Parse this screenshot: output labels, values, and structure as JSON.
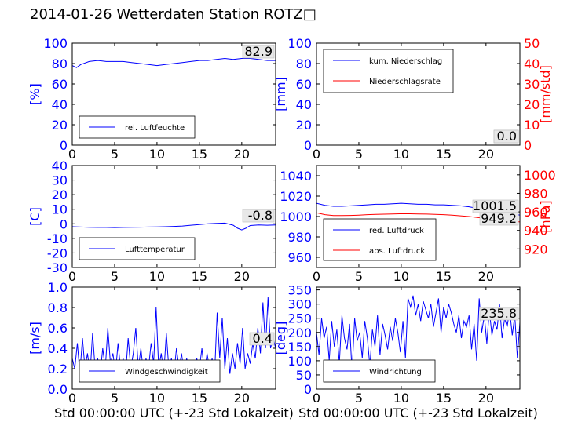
{
  "title": "2014-01-26 Wetterdaten Station ROTZ□",
  "colors": {
    "left_axis": "#0000ff",
    "right_axis": "#ff0000",
    "series_blue": "#0000ff",
    "series_red": "#ff0000"
  },
  "chart_data": [
    {
      "id": "humidity",
      "type": "line",
      "ylabel": "[%]",
      "xlim": [
        0,
        24
      ],
      "ylim": [
        0,
        100
      ],
      "xticks": [
        0,
        5,
        10,
        15,
        20
      ],
      "yticks": [
        0,
        20,
        40,
        60,
        80,
        100
      ],
      "legend_position": "lower-left",
      "value_box": "82.9",
      "series": [
        {
          "name": "rel. Luftfeuchte",
          "color": "#0000ff",
          "x": [
            0,
            0.5,
            1,
            2,
            3,
            4,
            5,
            6,
            7,
            8,
            9,
            10,
            11,
            12,
            13,
            14,
            15,
            16,
            17,
            18,
            19,
            20,
            21,
            22,
            23,
            24
          ],
          "y": [
            78,
            76,
            79,
            82,
            83,
            82,
            82,
            82,
            81,
            80,
            79,
            78,
            79,
            80,
            81,
            82,
            83,
            83,
            84,
            85,
            84,
            85,
            85,
            84,
            83,
            83
          ]
        }
      ]
    },
    {
      "id": "precipitation",
      "type": "line",
      "ylabel": "[mm]",
      "y2label": "[mm/std]",
      "xlim": [
        0,
        24
      ],
      "ylim": [
        0,
        100
      ],
      "y2lim": [
        0,
        50
      ],
      "xticks": [
        0,
        5,
        10,
        15,
        20
      ],
      "yticks": [
        0,
        20,
        40,
        60,
        80,
        100
      ],
      "y2ticks": [
        0,
        10,
        20,
        30,
        40,
        50
      ],
      "legend_position": "upper-left",
      "value_box": "0.0",
      "value_box2": "0.0",
      "series": [
        {
          "name": "kum. Niederschlag",
          "color": "#0000ff",
          "axis": "left",
          "x": [
            0,
            24
          ],
          "y": [
            0,
            0
          ]
        },
        {
          "name": "Niederschlagsrate",
          "color": "#ff0000",
          "axis": "right",
          "x": [
            0,
            24
          ],
          "y": [
            0,
            0
          ]
        }
      ]
    },
    {
      "id": "temperature",
      "type": "line",
      "ylabel": "[C]",
      "xlim": [
        0,
        24
      ],
      "ylim": [
        -30,
        40
      ],
      "xticks": [
        0,
        5,
        10,
        15,
        20
      ],
      "yticks": [
        -30,
        -20,
        -10,
        0,
        10,
        20,
        30,
        40
      ],
      "legend_position": "lower-left",
      "value_box": "-0.8",
      "series": [
        {
          "name": "Lufttemperatur",
          "color": "#0000ff",
          "x": [
            0,
            1,
            2,
            3,
            4,
            5,
            6,
            7,
            8,
            9,
            10,
            11,
            12,
            13,
            14,
            15,
            16,
            17,
            18,
            19,
            19.5,
            20,
            20.5,
            21,
            22,
            23,
            24
          ],
          "y": [
            -2,
            -2.2,
            -2.4,
            -2.5,
            -2.5,
            -2.6,
            -2.5,
            -2.4,
            -2.3,
            -2.2,
            -2.1,
            -2,
            -1.8,
            -1.5,
            -1,
            -0.5,
            0,
            0.3,
            0.5,
            -1,
            -3,
            -4.2,
            -3,
            -1.2,
            -0.8,
            -1,
            -0.8
          ]
        }
      ]
    },
    {
      "id": "pressure",
      "type": "line",
      "ylabel": "",
      "y2label": "[hPa]",
      "xlim": [
        0,
        24
      ],
      "ylim": [
        950,
        1050
      ],
      "y2lim": [
        900,
        1010
      ],
      "xticks": [
        0,
        5,
        10,
        15,
        20
      ],
      "yticks": [
        960,
        980,
        1000,
        1020,
        1040
      ],
      "y2ticks": [
        920,
        940,
        960,
        980,
        1000
      ],
      "legend_position": "lower-left",
      "value_box": "1001.5",
      "value_box2": "949.2",
      "series": [
        {
          "name": "red. Luftdruck",
          "color": "#0000ff",
          "axis": "left",
          "x": [
            0,
            1,
            2,
            3,
            4,
            5,
            6,
            7,
            8,
            9,
            10,
            11,
            12,
            13,
            14,
            15,
            16,
            17,
            18,
            19,
            20,
            21,
            22,
            23,
            24
          ],
          "y": [
            1013,
            1011,
            1010,
            1010,
            1010.5,
            1011,
            1011.5,
            1012,
            1012,
            1012.5,
            1013,
            1012.5,
            1012,
            1012,
            1011.5,
            1011.5,
            1011,
            1010.5,
            1009.5,
            1008,
            1007,
            1005.5,
            1004,
            1002.5,
            1001.5
          ]
        },
        {
          "name": "abs. Luftdruck",
          "color": "#ff0000",
          "axis": "right",
          "x": [
            0,
            1,
            2,
            3,
            4,
            5,
            6,
            7,
            8,
            9,
            10,
            11,
            12,
            13,
            14,
            15,
            16,
            17,
            18,
            19,
            20,
            21,
            22,
            23,
            24
          ],
          "y": [
            959,
            957,
            956,
            956,
            956.2,
            956.5,
            957,
            957.3,
            957.5,
            957.8,
            958,
            958,
            957.8,
            957.6,
            957.3,
            957,
            956.5,
            955.8,
            955,
            954,
            953,
            952,
            951,
            950,
            949.2
          ]
        }
      ]
    },
    {
      "id": "wind_speed",
      "type": "line",
      "ylabel": "[m/s]",
      "xlabel": "Std 00:00:00 UTC (+-23 Std Lokalzeit)",
      "xlim": [
        0,
        24
      ],
      "ylim": [
        0,
        1.0
      ],
      "xticks": [
        0,
        5,
        10,
        15,
        20
      ],
      "yticks": [
        0.0,
        0.2,
        0.4,
        0.6,
        0.8,
        1.0
      ],
      "legend_position": "lower-left",
      "value_box": "0.4",
      "series": [
        {
          "name": "Windgeschwindigkeit",
          "color": "#0000ff",
          "x": [
            0,
            0.3,
            0.6,
            0.9,
            1.2,
            1.5,
            1.8,
            2.1,
            2.4,
            2.7,
            3,
            3.3,
            3.6,
            3.9,
            4.2,
            4.5,
            4.8,
            5.1,
            5.4,
            5.7,
            6,
            6.3,
            6.6,
            6.9,
            7.2,
            7.5,
            7.8,
            8.1,
            8.4,
            8.7,
            9,
            9.3,
            9.6,
            9.9,
            10.2,
            10.5,
            10.8,
            11.1,
            11.4,
            11.7,
            12,
            12.3,
            12.6,
            12.9,
            13.2,
            13.5,
            13.8,
            14.1,
            14.4,
            14.7,
            15,
            15.3,
            15.6,
            15.9,
            16.2,
            16.5,
            16.8,
            17.1,
            17.4,
            17.7,
            18,
            18.3,
            18.6,
            18.9,
            19.2,
            19.5,
            19.8,
            20.1,
            20.4,
            20.7,
            21,
            21.3,
            21.6,
            21.9,
            22.2,
            22.5,
            22.8,
            23.1,
            23.4,
            23.7,
            24
          ],
          "y": [
            0.3,
            0.2,
            0.45,
            0.15,
            0.5,
            0.2,
            0.35,
            0.15,
            0.55,
            0.2,
            0.3,
            0.15,
            0.4,
            0.2,
            0.6,
            0.25,
            0.35,
            0.15,
            0.45,
            0.2,
            0.3,
            0.15,
            0.5,
            0.2,
            0.35,
            0.6,
            0.2,
            0.4,
            0.15,
            0.3,
            0.2,
            0.45,
            0.25,
            0.8,
            0.2,
            0.35,
            0.15,
            0.55,
            0.2,
            0.3,
            0.15,
            0.4,
            0.2,
            0.35,
            0.15,
            0.3,
            0.2,
            0.25,
            0.15,
            0.3,
            0.2,
            0.4,
            0.15,
            0.35,
            0.2,
            0.3,
            0.15,
            0.75,
            0.3,
            0.7,
            0.2,
            0.5,
            0.15,
            0.35,
            0.2,
            0.45,
            0.25,
            0.6,
            0.2,
            0.35,
            0.25,
            0.45,
            0.3,
            0.6,
            0.35,
            0.85,
            0.4,
            0.9,
            0.4,
            0.5,
            0.4
          ]
        }
      ]
    },
    {
      "id": "wind_direction",
      "type": "line",
      "ylabel": "[deg]",
      "xlabel": "Std 00:00:00 UTC (+-23 Std Lokalzeit)",
      "xlim": [
        0,
        24
      ],
      "ylim": [
        0,
        360
      ],
      "xticks": [
        0,
        5,
        10,
        15,
        20
      ],
      "yticks": [
        0,
        50,
        100,
        150,
        200,
        250,
        300,
        350
      ],
      "legend_position": "lower-left",
      "value_box": "235.8",
      "series": [
        {
          "name": "Windrichtung",
          "color": "#0000ff",
          "x": [
            0,
            0.3,
            0.6,
            0.9,
            1.2,
            1.5,
            1.8,
            2.1,
            2.4,
            2.7,
            3,
            3.3,
            3.6,
            3.9,
            4.2,
            4.5,
            4.8,
            5.1,
            5.4,
            5.7,
            6,
            6.3,
            6.6,
            6.9,
            7.2,
            7.5,
            7.8,
            8.1,
            8.4,
            8.7,
            9,
            9.3,
            9.6,
            9.9,
            10.2,
            10.5,
            10.8,
            11.1,
            11.4,
            11.7,
            12,
            12.3,
            12.6,
            12.9,
            13.2,
            13.5,
            13.8,
            14.1,
            14.4,
            14.7,
            15,
            15.3,
            15.6,
            15.9,
            16.2,
            16.5,
            16.8,
            17.1,
            17.4,
            17.7,
            18,
            18.3,
            18.6,
            18.9,
            19.2,
            19.5,
            19.8,
            20.1,
            20.4,
            20.7,
            21,
            21.3,
            21.6,
            21.9,
            22.2,
            22.5,
            22.8,
            23.1,
            23.4,
            23.7,
            24
          ],
          "y": [
            200,
            120,
            250,
            180,
            220,
            100,
            240,
            150,
            210,
            90,
            260,
            180,
            140,
            230,
            60,
            250,
            170,
            200,
            110,
            240,
            180,
            80,
            210,
            150,
            260,
            120,
            230,
            190,
            140,
            220,
            170,
            250,
            200,
            130,
            240,
            110,
            320,
            290,
            330,
            260,
            300,
            240,
            310,
            280,
            250,
            300,
            220,
            270,
            320,
            200,
            290,
            250,
            300,
            270,
            230,
            200,
            260,
            180,
            240,
            220,
            260,
            140,
            230,
            100,
            320,
            200,
            260,
            160,
            280,
            190,
            240,
            210,
            300,
            180,
            250,
            220,
            280,
            190,
            260,
            110,
            236
          ]
        }
      ]
    }
  ]
}
